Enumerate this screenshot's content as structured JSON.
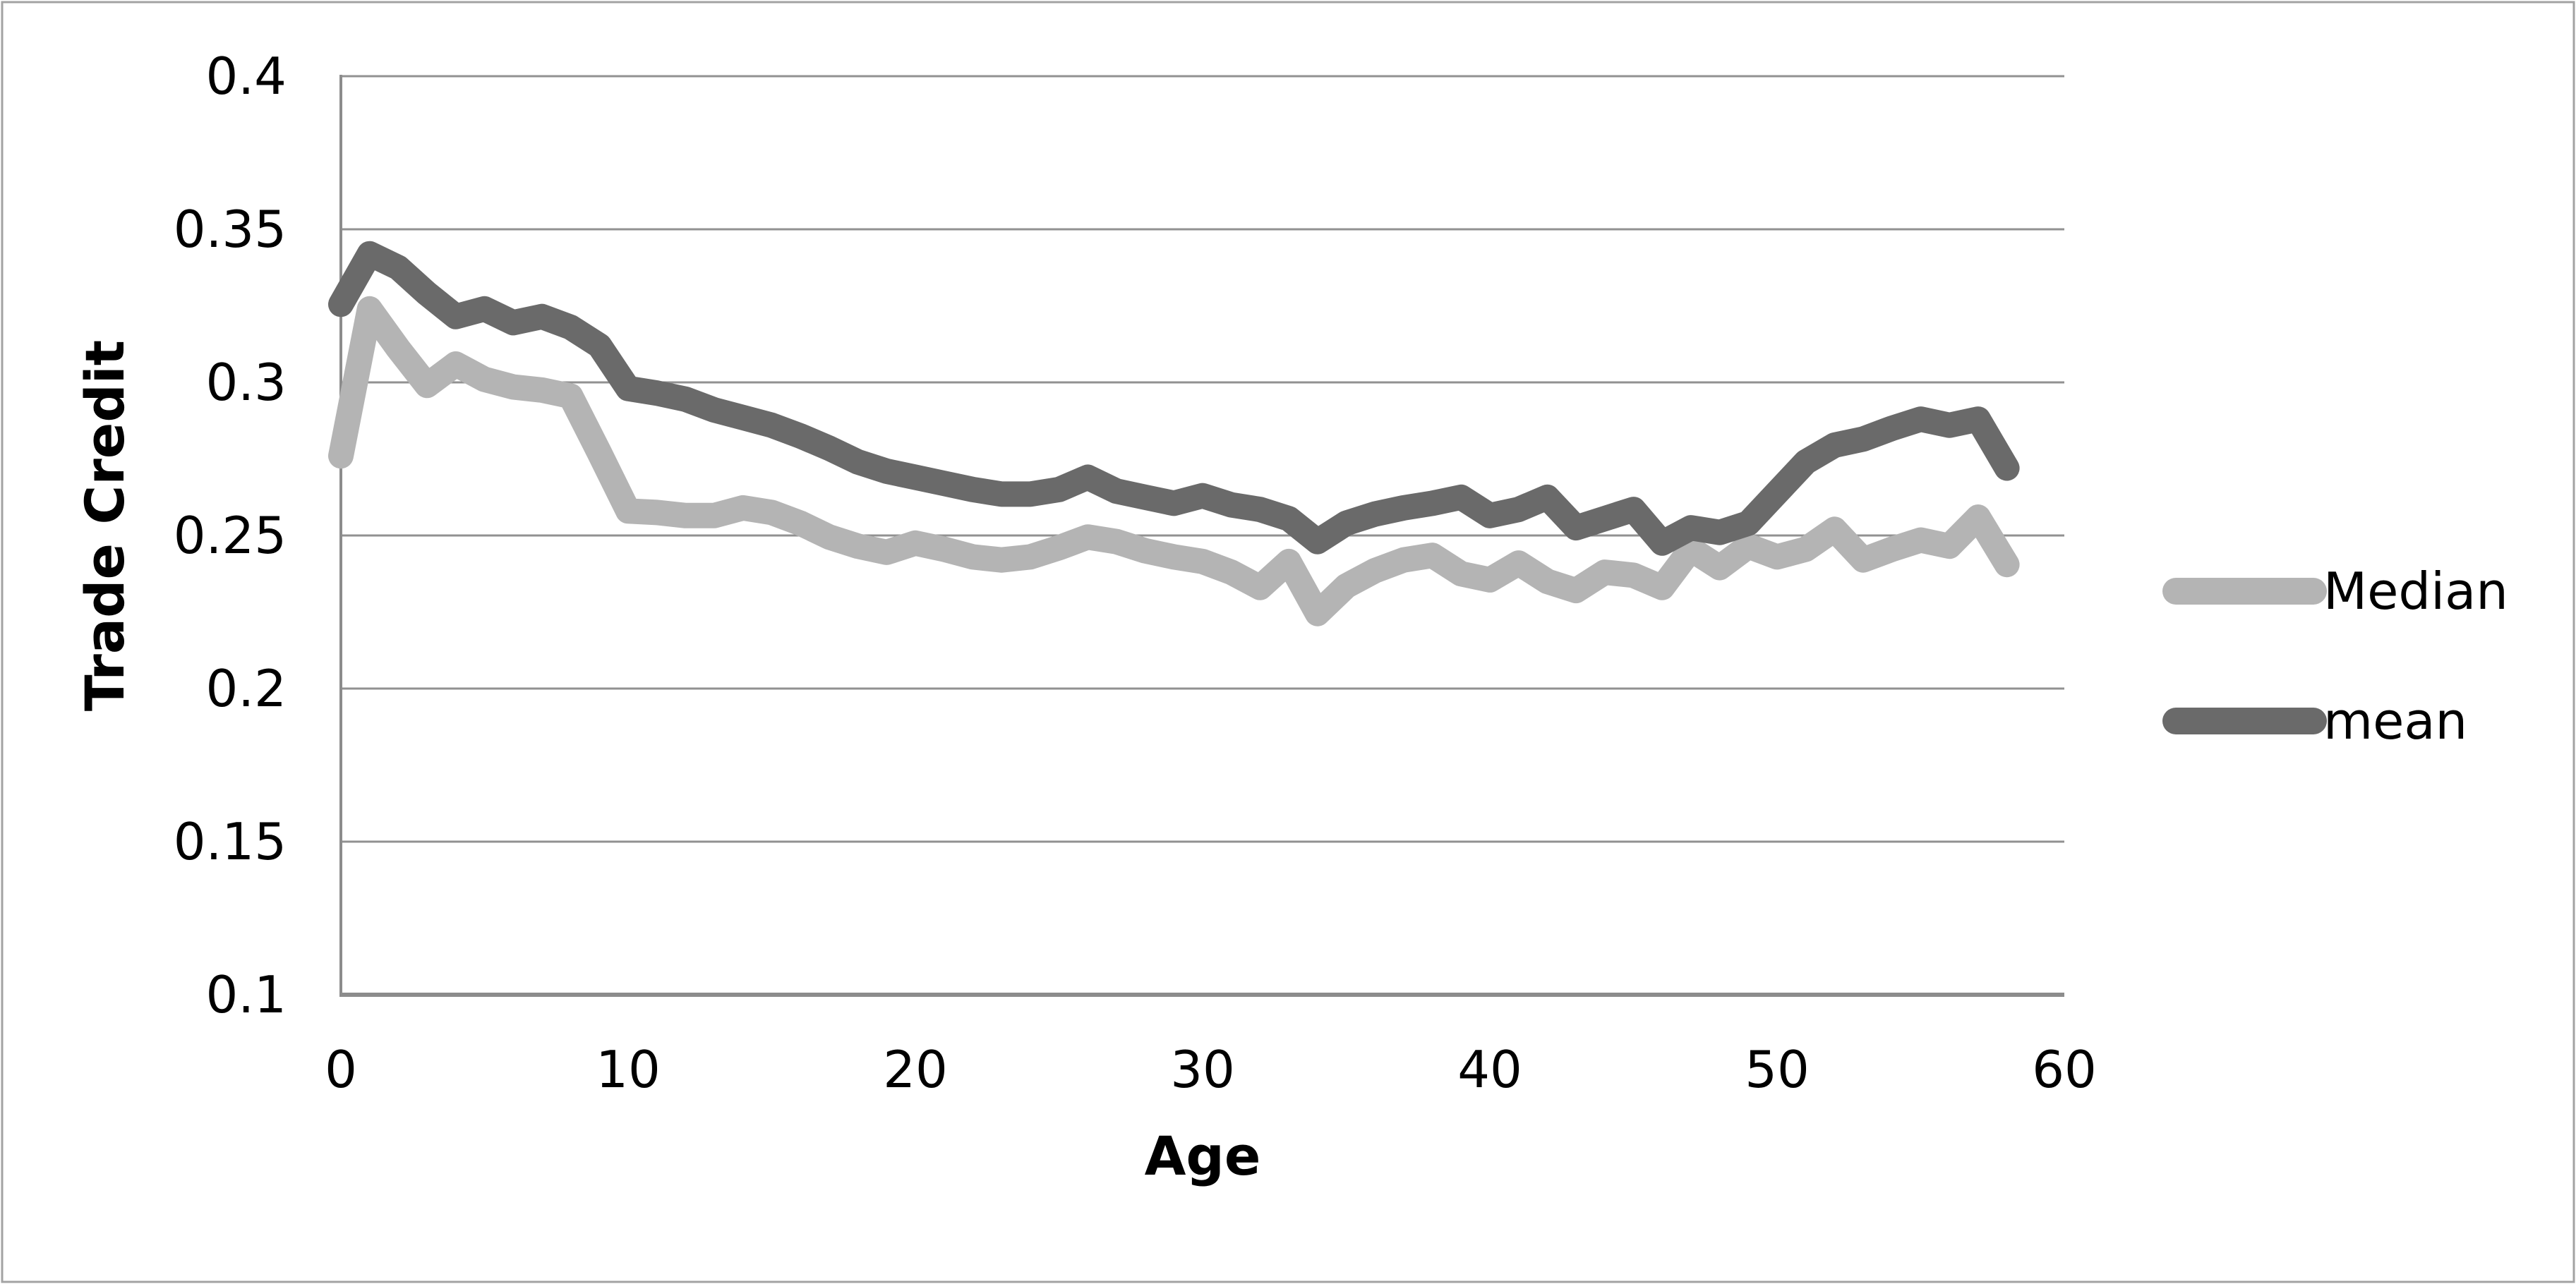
{
  "chart_data": {
    "type": "line",
    "title": "",
    "xlabel": "Age",
    "ylabel": "Trade Credit",
    "xlim": [
      0,
      60
    ],
    "ylim": [
      0.1,
      0.4
    ],
    "grid": true,
    "legend_position": "right",
    "xticks": [
      {
        "label": "0",
        "value": 0
      },
      {
        "label": "10",
        "value": 10
      },
      {
        "label": "20",
        "value": 20
      },
      {
        "label": "30",
        "value": 30
      },
      {
        "label": "40",
        "value": 40
      },
      {
        "label": "50",
        "value": 50
      },
      {
        "label": "60",
        "value": 60
      }
    ],
    "yticks": [
      {
        "label": "0.4",
        "value": 0.4
      },
      {
        "label": "0.35",
        "value": 0.35
      },
      {
        "label": "0.3",
        "value": 0.3
      },
      {
        "label": "0.25",
        "value": 0.25
      },
      {
        "label": "0.2",
        "value": 0.2
      },
      {
        "label": "0.15",
        "value": 0.15
      },
      {
        "label": "0.1",
        "value": 0.1
      }
    ],
    "x": [
      0,
      1,
      2,
      3,
      4,
      5,
      6,
      7,
      8,
      9,
      10,
      11,
      12,
      13,
      14,
      15,
      16,
      17,
      18,
      19,
      20,
      21,
      22,
      23,
      24,
      25,
      26,
      27,
      28,
      29,
      30,
      31,
      32,
      33,
      34,
      35,
      36,
      37,
      38,
      39,
      40,
      41,
      42,
      43,
      44,
      45,
      46,
      47,
      48,
      49,
      50,
      51,
      52,
      53,
      54,
      55,
      56,
      57,
      58
    ],
    "series": [
      {
        "name": "Median",
        "color": "#b4b4b4",
        "values": [
          0.276,
          0.324,
          0.311,
          0.299,
          0.306,
          0.301,
          0.2985,
          0.2975,
          0.2955,
          0.277,
          0.258,
          0.2575,
          0.2565,
          0.2565,
          0.259,
          0.2575,
          0.254,
          0.2495,
          0.2465,
          0.2445,
          0.2475,
          0.2455,
          0.243,
          0.242,
          0.243,
          0.246,
          0.2495,
          0.248,
          0.245,
          0.243,
          0.2415,
          0.238,
          0.233,
          0.2415,
          0.2245,
          0.2335,
          0.2385,
          0.242,
          0.2435,
          0.2375,
          0.2355,
          0.241,
          0.235,
          0.232,
          0.238,
          0.237,
          0.233,
          0.2455,
          0.2395,
          0.2465,
          0.243,
          0.2455,
          0.252,
          0.242,
          0.2455,
          0.2485,
          0.2465,
          0.256,
          0.2405
        ]
      },
      {
        "name": "mean",
        "color": "#6a6a6a",
        "values": [
          0.3255,
          0.342,
          0.3375,
          0.329,
          0.3215,
          0.324,
          0.3195,
          0.3215,
          0.318,
          0.312,
          0.298,
          0.2965,
          0.2945,
          0.291,
          0.2885,
          0.286,
          0.2825,
          0.2785,
          0.274,
          0.271,
          0.269,
          0.267,
          0.265,
          0.2635,
          0.2635,
          0.265,
          0.269,
          0.2645,
          0.2625,
          0.2605,
          0.263,
          0.26,
          0.2585,
          0.2555,
          0.248,
          0.254,
          0.257,
          0.259,
          0.2605,
          0.2625,
          0.2565,
          0.2585,
          0.2625,
          0.2525,
          0.2555,
          0.2585,
          0.2475,
          0.2525,
          0.251,
          0.254,
          0.264,
          0.274,
          0.2795,
          0.2815,
          0.285,
          0.288,
          0.286,
          0.288,
          0.272
        ]
      }
    ],
    "style": {
      "line_width": 36,
      "gridline_color": "#919191",
      "axis_color": "#8c8c8c",
      "border_color": "#a3a3a3",
      "text_color": "#000000",
      "background": "#ffffff"
    }
  }
}
